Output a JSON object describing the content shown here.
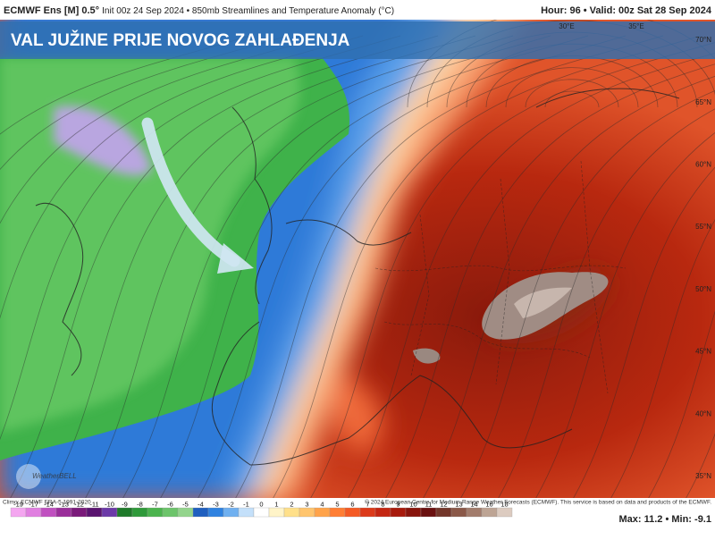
{
  "header": {
    "model": "ECMWF Ens [M] 0.5°",
    "details": "Init 00z 24 Sep 2024 • 850mb Streamlines and Temperature Anomaly (°C)",
    "valid": "Hour: 96 • Valid: 00z Sat 28 Sep 2024"
  },
  "banner": "VAL JUŽINE PRIJE NOVOG ZAHLAĐENJA",
  "map_labels": {
    "longitudes": [
      "30°E",
      "35°E"
    ],
    "latitudes": [
      "70°N",
      "65°N",
      "60°N",
      "55°N",
      "50°N",
      "45°N",
      "40°N",
      "35°N"
    ]
  },
  "watermark": "WeatherBELL",
  "footer": {
    "climo": "Climo: ECMWF ERA-5 1991-2020",
    "copyright": "© 2024 European Centre for Medium-Range Weather Forecasts (ECMWF). This service is based on data and products of the ECMWF."
  },
  "colorbar": {
    "ticks": [
      -19,
      -17,
      -14,
      -13,
      -12,
      -11,
      -10,
      -9,
      -8,
      -7,
      -6,
      -5,
      -4,
      -3,
      -2,
      -1,
      0,
      1,
      2,
      3,
      4,
      5,
      6,
      7,
      8,
      9,
      10,
      11,
      12,
      13,
      14,
      16,
      18
    ],
    "colors": [
      "#f4a6f0",
      "#e07fe0",
      "#c050c0",
      "#9a2e9a",
      "#7a1a7a",
      "#5a1470",
      "#6c3aa8",
      "#1f7a2a",
      "#2f9a3a",
      "#4cb44e",
      "#6cc46a",
      "#93d48c",
      "#1f5fbf",
      "#2f82e0",
      "#6fb0f0",
      "#c4e0fa",
      "#ffffff",
      "#fff4c8",
      "#ffe08a",
      "#ffc56e",
      "#ffa34a",
      "#ff7e34",
      "#f45a24",
      "#dc3a1a",
      "#c42612",
      "#a81a0c",
      "#88140c",
      "#6a1010",
      "#73362a",
      "#8a5848",
      "#a27c6c",
      "#bda494",
      "#dccbc0"
    ]
  },
  "stats": {
    "max_label": "Max:",
    "max": 11.2,
    "separator": "•",
    "min_label": "Min:",
    "min": -9.1
  }
}
